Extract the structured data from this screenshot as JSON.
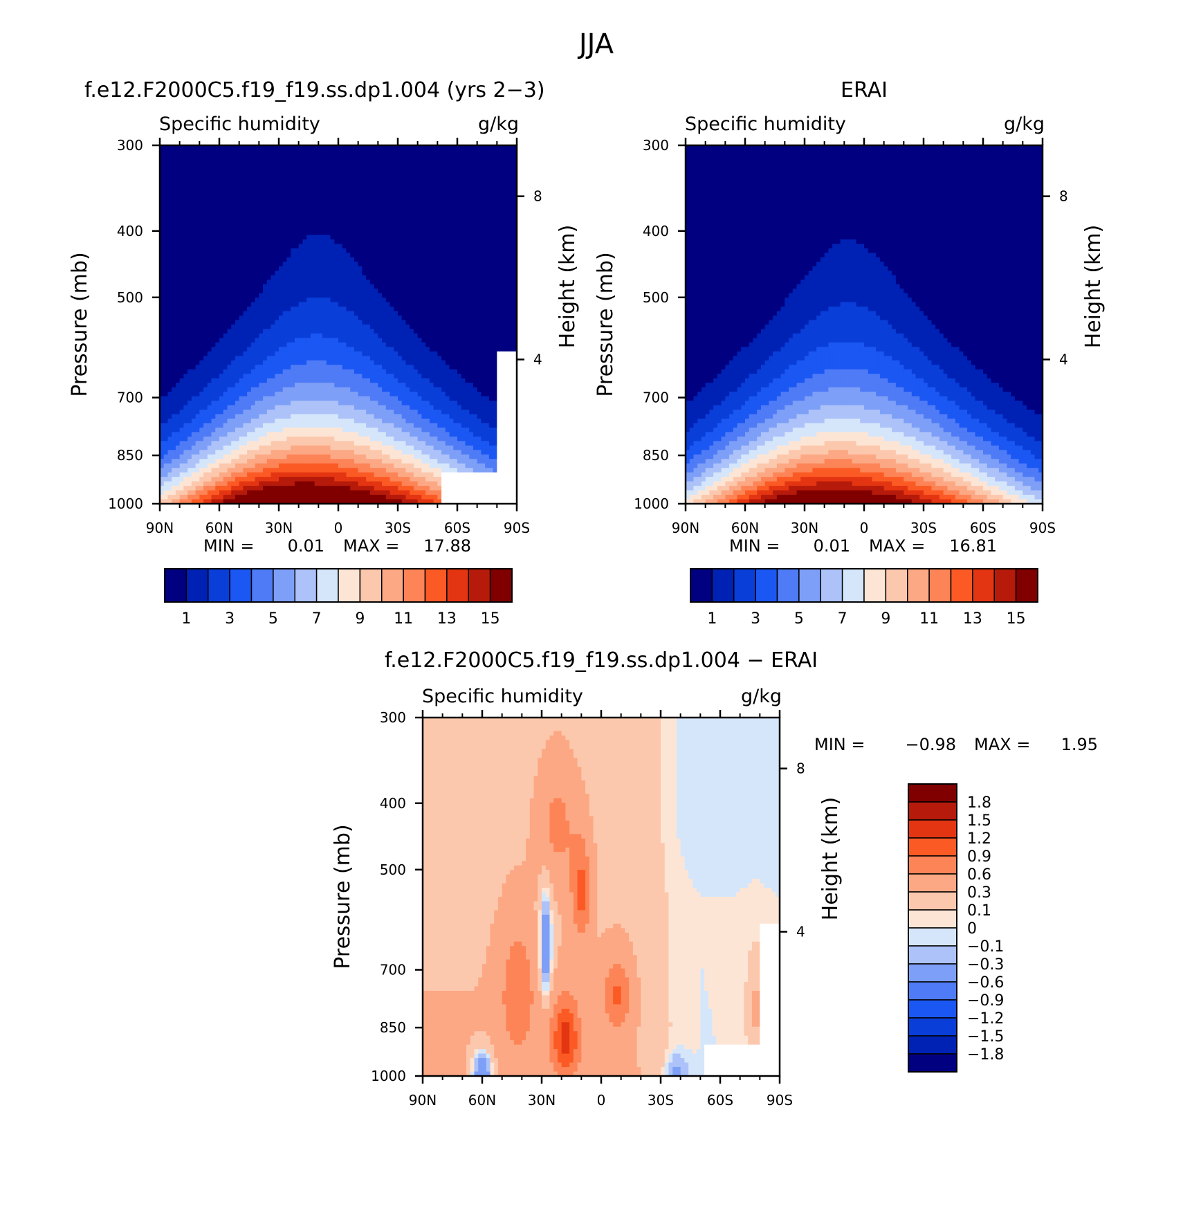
{
  "figure": {
    "title": "JJA"
  },
  "chart_data": [
    {
      "type": "heatmap",
      "title": "f.e12.F2000C5.f19_f19.ss.dp1.004 (yrs 2-3)",
      "subtitle_left": "Specific humidity",
      "subtitle_right": "g/kg",
      "ylabel": "Pressure (mb)",
      "ylabel_right": "Height (km)",
      "x_ticks": [
        "90N",
        "60N",
        "30N",
        "0",
        "30S",
        "60S",
        "90S"
      ],
      "xlim": [
        90,
        -90
      ],
      "y_ticks": [
        "300",
        "400",
        "500",
        "700",
        "850",
        "1000"
      ],
      "ylim": [
        1000,
        300
      ],
      "y_scale": "log",
      "height_ticks": [
        "8",
        "4"
      ],
      "min_label": "MIN =",
      "min_value": "0.01",
      "max_label": "MAX =",
      "max_value": "17.88",
      "peak_latitude": 10,
      "peak_value": 17.88,
      "colorbar": {
        "orientation": "horizontal",
        "labels": [
          "1",
          "3",
          "5",
          "7",
          "9",
          "11",
          "13",
          "15"
        ],
        "levels": [
          1,
          2,
          3,
          4,
          5,
          6,
          7,
          8,
          9,
          10,
          11,
          12,
          13,
          14,
          15
        ]
      }
    },
    {
      "type": "heatmap",
      "title": "ERAI",
      "subtitle_left": "Specific humidity",
      "subtitle_right": "g/kg",
      "ylabel": "Pressure (mb)",
      "ylabel_right": "Height (km)",
      "x_ticks": [
        "90N",
        "60N",
        "30N",
        "0",
        "30S",
        "60S",
        "90S"
      ],
      "xlim": [
        90,
        -90
      ],
      "y_ticks": [
        "300",
        "400",
        "500",
        "700",
        "850",
        "1000"
      ],
      "ylim": [
        1000,
        300
      ],
      "y_scale": "log",
      "height_ticks": [
        "8",
        "4"
      ],
      "min_label": "MIN =",
      "min_value": "0.01",
      "max_label": "MAX =",
      "max_value": "16.81",
      "peak_latitude": 8,
      "peak_value": 16.81,
      "colorbar": {
        "orientation": "horizontal",
        "labels": [
          "1",
          "3",
          "5",
          "7",
          "9",
          "11",
          "13",
          "15"
        ],
        "levels": [
          1,
          2,
          3,
          4,
          5,
          6,
          7,
          8,
          9,
          10,
          11,
          12,
          13,
          14,
          15
        ]
      }
    },
    {
      "type": "heatmap",
      "title": "f.e12.F2000C5.f19_f19.ss.dp1.004 - ERAI",
      "subtitle_left": "Specific humidity",
      "subtitle_right": "g/kg",
      "ylabel": "Pressure (mb)",
      "ylabel_right": "Height (km)",
      "x_ticks": [
        "90N",
        "60N",
        "30N",
        "0",
        "30S",
        "60S",
        "90S"
      ],
      "xlim": [
        90,
        -90
      ],
      "y_ticks": [
        "300",
        "400",
        "500",
        "700",
        "850",
        "1000"
      ],
      "ylim": [
        1000,
        300
      ],
      "y_scale": "log",
      "height_ticks": [
        "8",
        "4"
      ],
      "min_label": "MIN =",
      "min_value": "-0.98",
      "max_label": "MAX =",
      "max_value": "1.95",
      "colorbar": {
        "orientation": "vertical",
        "labels": [
          "1.8",
          "1.5",
          "1.2",
          "0.9",
          "0.6",
          "0.3",
          "0.1",
          "0",
          "-0.1",
          "-0.3",
          "-0.6",
          "-0.9",
          "-1.2",
          "-1.5",
          "-1.8"
        ],
        "levels": [
          1.8,
          1.5,
          1.2,
          0.9,
          0.6,
          0.3,
          0.1,
          0,
          -0.1,
          -0.3,
          -0.6,
          -0.9,
          -1.2,
          -1.5,
          -1.8
        ]
      }
    }
  ],
  "colors": {
    "abs_scale": [
      "#000080",
      "#0022b4",
      "#0a3ed8",
      "#1b57f3",
      "#4f7bf6",
      "#7e9ff7",
      "#acc2f9",
      "#d5e6fb",
      "#fde5d5",
      "#fcc8ad",
      "#fca884",
      "#fd8457",
      "#fc5a24",
      "#e43512",
      "#b61a0a",
      "#800000"
    ],
    "diff_scale": [
      "#800000",
      "#b61a0a",
      "#e43512",
      "#fc5a24",
      "#fd8457",
      "#fca884",
      "#fcc8ad",
      "#fde5d5",
      "#d5e6fb",
      "#acc2f9",
      "#7e9ff7",
      "#4f7bf6",
      "#1b57f3",
      "#0a3ed8",
      "#0022b4",
      "#000080"
    ],
    "missing": "#ffffff"
  }
}
